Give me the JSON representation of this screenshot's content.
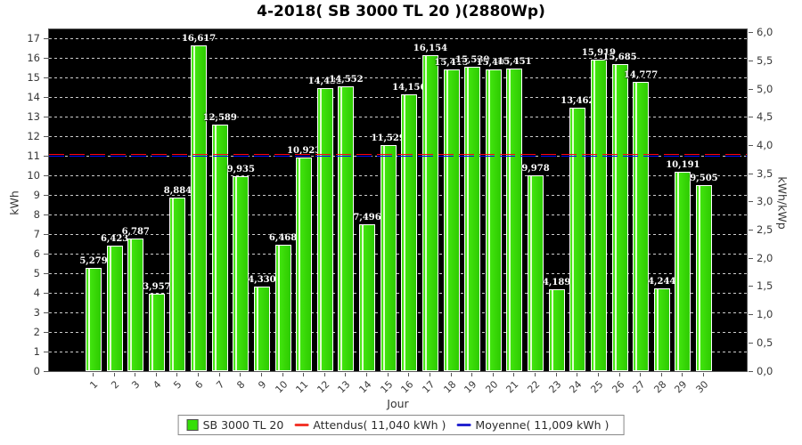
{
  "title": "4-2018( SB 3000 TL 20 )(2880Wp)",
  "chart_data": {
    "type": "bar",
    "title": "4-2018( SB 3000 TL 20 )(2880Wp)",
    "xlabel": "Jour",
    "ylabel_left": "kWh",
    "ylabel_right": "kWh/kWp",
    "series_name": "SB 3000 TL 20",
    "categories": [
      "1",
      "2",
      "3",
      "4",
      "5",
      "6",
      "7",
      "8",
      "9",
      "10",
      "11",
      "12",
      "13",
      "14",
      "15",
      "16",
      "17",
      "18",
      "19",
      "20",
      "21",
      "22",
      "23",
      "24",
      "25",
      "26",
      "27",
      "28",
      "29",
      "30"
    ],
    "values": [
      5.279,
      6.423,
      6.787,
      3.957,
      8.884,
      16.617,
      12.589,
      9.935,
      4.33,
      6.468,
      10.923,
      14.435,
      14.552,
      7.496,
      11.529,
      14.156,
      16.154,
      15.415,
      15.53,
      15.405,
      15.451,
      9.978,
      4.189,
      13.462,
      15.919,
      15.685,
      14.777,
      4.244,
      10.191,
      9.505
    ],
    "value_labels": [
      "5,279",
      "6,423",
      "6,787",
      "3,957",
      "8,884",
      "16,617",
      "12,589",
      "9,935",
      "4,330",
      "6,468",
      "10,923",
      "14,435",
      "14,552",
      "7,496",
      "11,529",
      "14,156",
      "16,154",
      "15,415",
      "15,530",
      "15,405",
      "15,451",
      "9,978",
      "4,189",
      "13,462",
      "15,919",
      "15,685",
      "14,777",
      "4,244",
      "10,191",
      "9,505"
    ],
    "yticks_left": [
      "0",
      "1",
      "2",
      "3",
      "4",
      "5",
      "6",
      "7",
      "8",
      "9",
      "10",
      "11",
      "12",
      "13",
      "14",
      "15",
      "16",
      "17"
    ],
    "yticks_right": [
      "0,0",
      "0,5",
      "1,0",
      "1,5",
      "2,0",
      "2,5",
      "3,0",
      "3,5",
      "4,0",
      "4,5",
      "5,0",
      "5,5",
      "6,0"
    ],
    "ylim_left": [
      0,
      17.45
    ],
    "ylim_right": [
      0,
      6.0
    ],
    "kwh_per_kwp_factor": 2.88,
    "attendus_kwh": 11.04,
    "moyenne_kwh": 11.009,
    "grid": true,
    "legend_position": "bottom",
    "colors": {
      "bar": "#35df08",
      "attendus_line": "#ff0012",
      "moyenne_line": "#0008ff",
      "plot_background": "#000000",
      "gridline": "#f0f0f0"
    }
  },
  "legend": {
    "series_label": "SB 3000 TL 20",
    "attendus_label": "Attendus( 11,040 kWh )",
    "moyenne_label": "Moyenne( 11,009 kWh )"
  }
}
